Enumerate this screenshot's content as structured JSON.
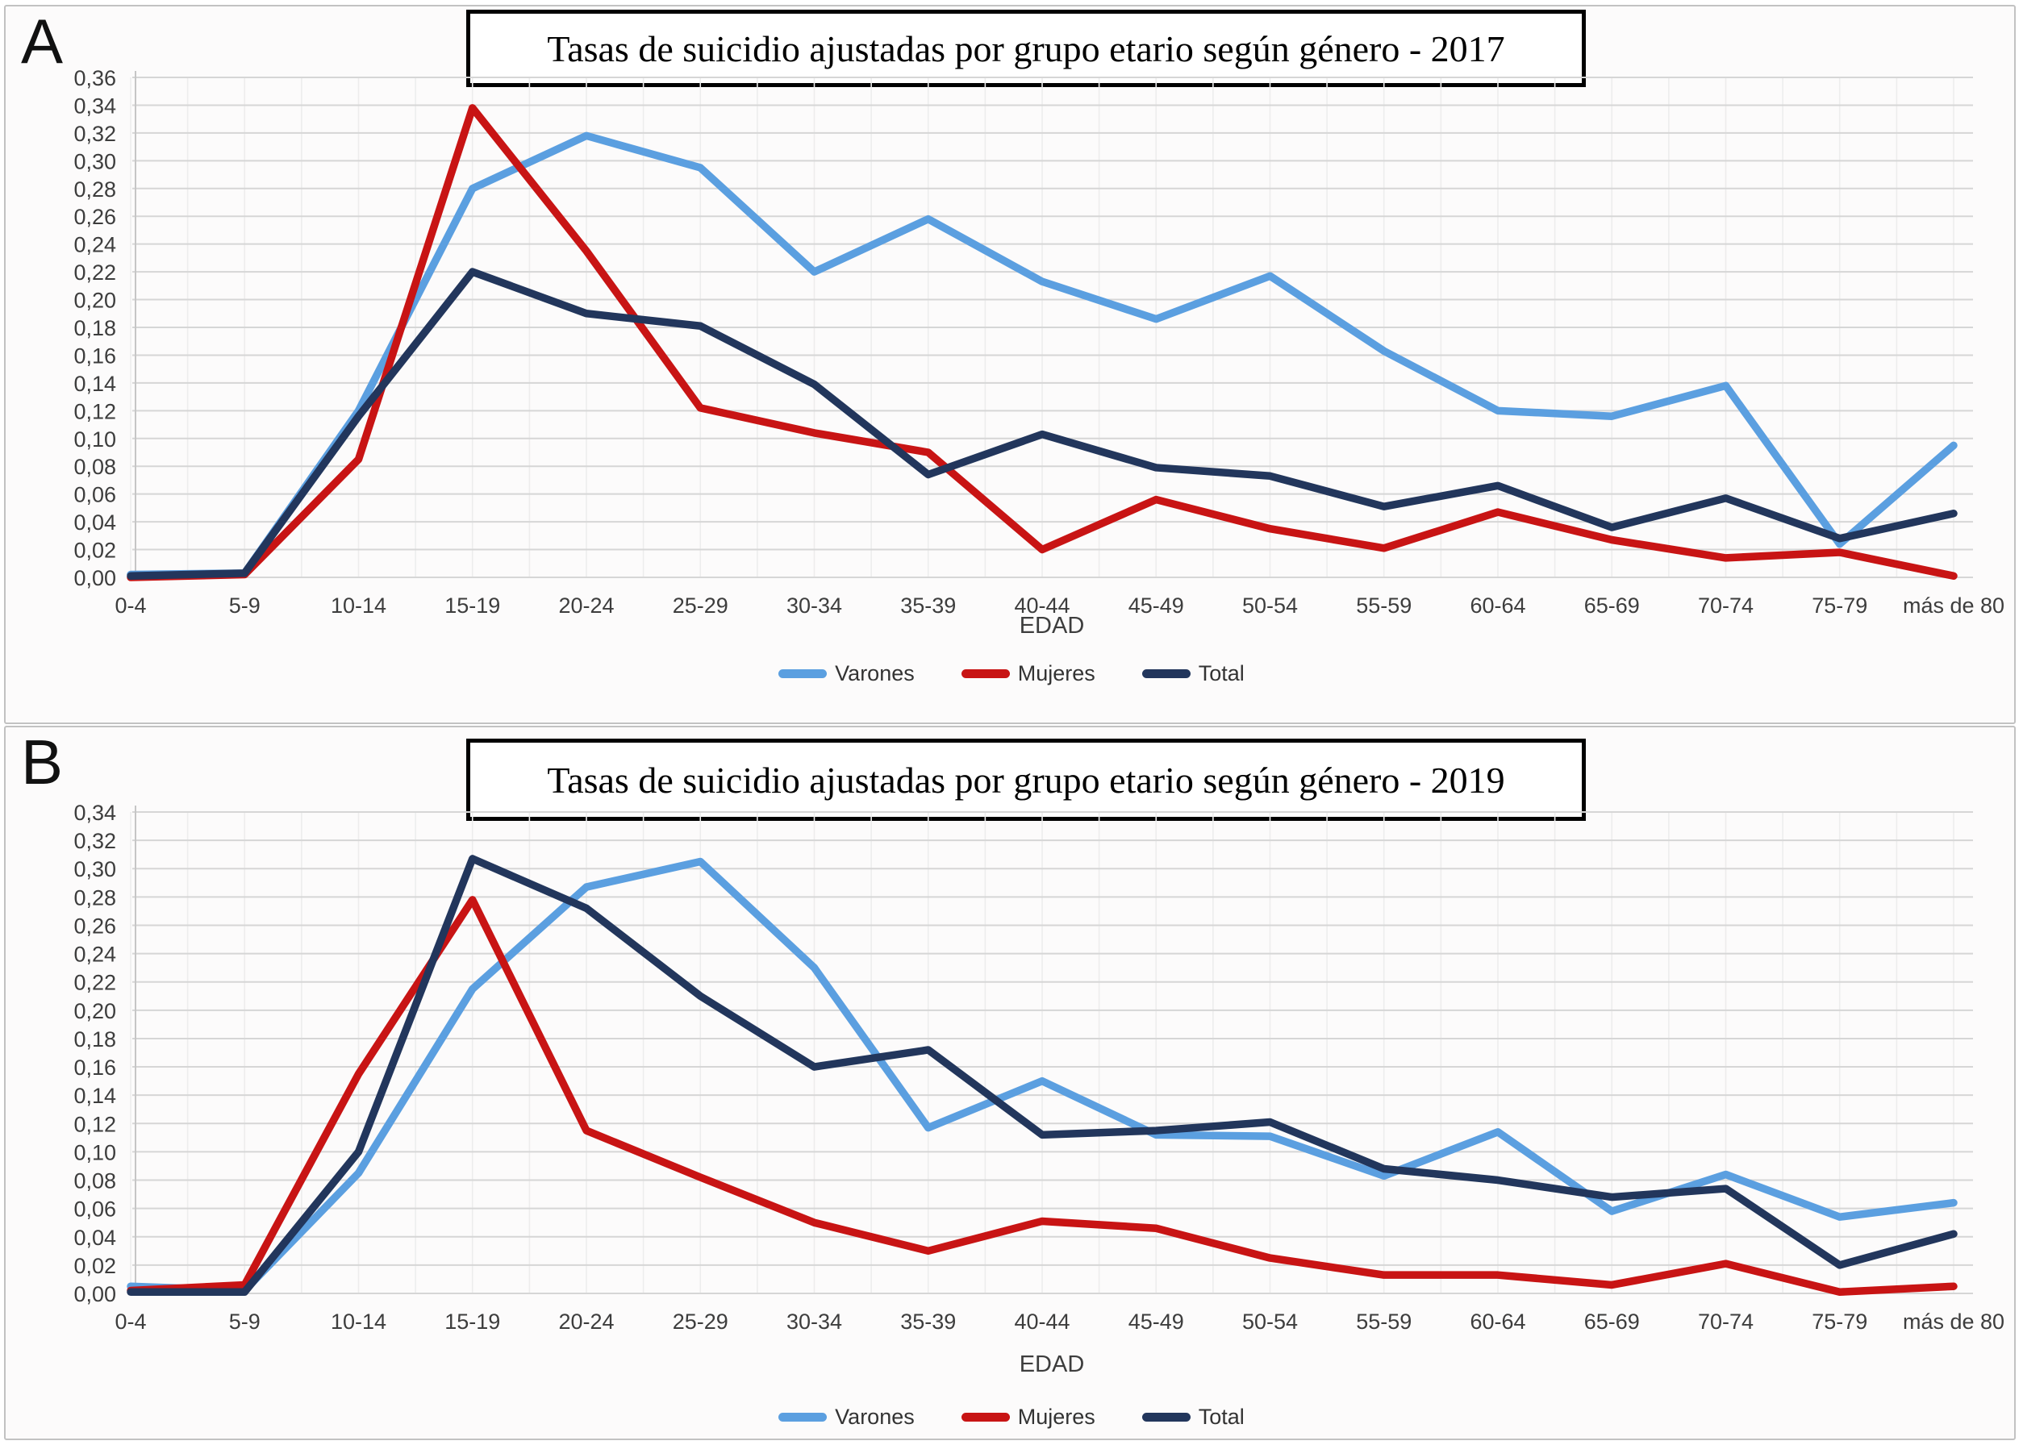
{
  "figure": {
    "panels": [
      {
        "panel_label": "A"
      },
      {
        "panel_label": "B"
      }
    ]
  },
  "chart_data": [
    {
      "type": "line",
      "title": "Tasas de suicidio ajustadas por grupo etario según género - 2017",
      "xlabel": "EDAD",
      "ylabel": "",
      "ylim": [
        0,
        0.36
      ],
      "ytick_step": 0.02,
      "decimal_separator": ",",
      "grid": true,
      "legend_position": "bottom",
      "categories": [
        "0-4",
        "5-9",
        "10-14",
        "15-19",
        "20-24",
        "25-29",
        "30-34",
        "35-39",
        "40-44",
        "45-49",
        "50-54",
        "55-59",
        "60-64",
        "65-69",
        "70-74",
        "75-79",
        "más de 80"
      ],
      "series": [
        {
          "name": "Varones",
          "color": "#5B9FE0",
          "values": [
            0.002,
            0.003,
            0.12,
            0.28,
            0.318,
            0.295,
            0.22,
            0.258,
            0.213,
            0.186,
            0.217,
            0.163,
            0.12,
            0.116,
            0.138,
            0.024,
            0.095
          ]
        },
        {
          "name": "Mujeres",
          "color": "#C81414",
          "values": [
            0.0,
            0.002,
            0.085,
            0.338,
            0.235,
            0.122,
            0.104,
            0.09,
            0.02,
            0.056,
            0.035,
            0.021,
            0.047,
            0.027,
            0.014,
            0.018,
            0.001
          ]
        },
        {
          "name": "Total",
          "color": "#22365C",
          "values": [
            0.001,
            0.003,
            0.116,
            0.22,
            0.19,
            0.181,
            0.139,
            0.074,
            0.103,
            0.079,
            0.073,
            0.051,
            0.066,
            0.036,
            0.057,
            0.028,
            0.046
          ]
        }
      ]
    },
    {
      "type": "line",
      "title": "Tasas de suicidio ajustadas por grupo etario según género - 2019",
      "xlabel": "EDAD",
      "ylabel": "",
      "ylim": [
        0,
        0.34
      ],
      "ytick_step": 0.02,
      "decimal_separator": ",",
      "grid": true,
      "legend_position": "bottom",
      "categories": [
        "0-4",
        "5-9",
        "10-14",
        "15-19",
        "20-24",
        "25-29",
        "30-34",
        "35-39",
        "40-44",
        "45-49",
        "50-54",
        "55-59",
        "60-64",
        "65-69",
        "70-74",
        "75-79",
        "más de 80"
      ],
      "series": [
        {
          "name": "Varones",
          "color": "#5B9FE0",
          "values": [
            0.005,
            0.002,
            0.085,
            0.215,
            0.287,
            0.305,
            0.23,
            0.117,
            0.15,
            0.112,
            0.111,
            0.083,
            0.114,
            0.058,
            0.084,
            0.054,
            0.064
          ]
        },
        {
          "name": "Mujeres",
          "color": "#C81414",
          "values": [
            0.002,
            0.006,
            0.155,
            0.278,
            0.115,
            0.082,
            0.05,
            0.03,
            0.051,
            0.046,
            0.025,
            0.013,
            0.013,
            0.006,
            0.021,
            0.001,
            0.005
          ]
        },
        {
          "name": "Total",
          "color": "#22365C",
          "values": [
            0.001,
            0.001,
            0.1,
            0.307,
            0.272,
            0.21,
            0.16,
            0.172,
            0.112,
            0.115,
            0.121,
            0.088,
            0.08,
            0.068,
            0.074,
            0.02,
            0.042
          ]
        }
      ]
    }
  ]
}
